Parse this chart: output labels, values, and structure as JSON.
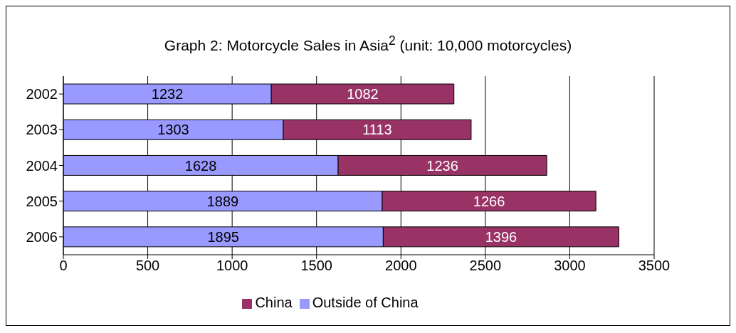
{
  "chart_data": {
    "type": "bar",
    "orientation": "horizontal",
    "stacked": true,
    "title": "Graph 2: Motorcycle Sales in Asia$^{2}$ (unit: 10,000 motorcycles)",
    "categories": [
      "2002",
      "2003",
      "2004",
      "2005",
      "2006"
    ],
    "series": [
      {
        "name": "Outside of China",
        "color": "#9999ff",
        "values": [
          1232,
          1303,
          1628,
          1889,
          1895
        ]
      },
      {
        "name": "China",
        "color": "#993366",
        "values": [
          1082,
          1113,
          1236,
          1266,
          1396
        ]
      }
    ],
    "xlim": [
      0,
      3500
    ],
    "xticks": [
      0,
      500,
      1000,
      1500,
      2000,
      2500,
      3000,
      3500
    ],
    "grid": "x",
    "legend": "bottom",
    "data_labels": true
  }
}
